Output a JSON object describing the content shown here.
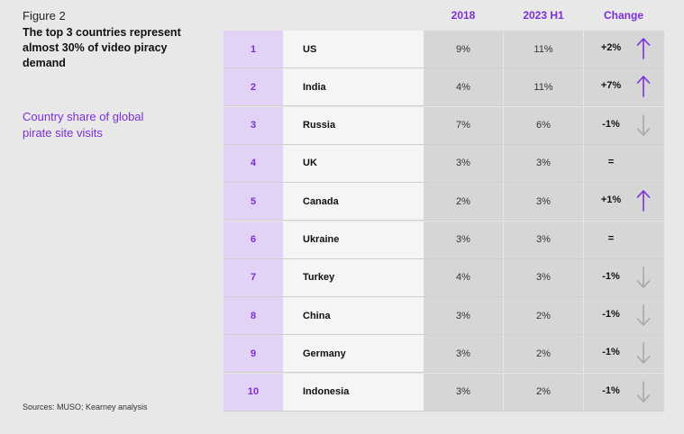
{
  "figure_label": "Figure 2",
  "title": "The top 3 countries represent almost 30% of video piracy demand",
  "subtitle": "Country share of global pirate site visits",
  "sources": "Sources: MUSO; Kearney analysis",
  "colors": {
    "accent": "#7b2fd6",
    "rank_bg": "#e2d2f5",
    "up_arrow": "#7b2fd6",
    "down_arrow": "#a8a8a8"
  },
  "chart_data": {
    "type": "table",
    "columns": [
      "",
      "",
      "2018",
      "2023 H1",
      "Change"
    ],
    "rows": [
      {
        "rank": "1",
        "country": "US",
        "y2018": "9%",
        "y2023": "11%",
        "change": "+2%",
        "direction": "up"
      },
      {
        "rank": "2",
        "country": "India",
        "y2018": "4%",
        "y2023": "11%",
        "change": "+7%",
        "direction": "up"
      },
      {
        "rank": "3",
        "country": "Russia",
        "y2018": "7%",
        "y2023": "6%",
        "change": "-1%",
        "direction": "down"
      },
      {
        "rank": "4",
        "country": "UK",
        "y2018": "3%",
        "y2023": "3%",
        "change": "=",
        "direction": "none"
      },
      {
        "rank": "5",
        "country": "Canada",
        "y2018": "2%",
        "y2023": "3%",
        "change": "+1%",
        "direction": "up"
      },
      {
        "rank": "6",
        "country": "Ukraine",
        "y2018": "3%",
        "y2023": "3%",
        "change": "=",
        "direction": "none"
      },
      {
        "rank": "7",
        "country": "Turkey",
        "y2018": "4%",
        "y2023": "3%",
        "change": "-1%",
        "direction": "down"
      },
      {
        "rank": "8",
        "country": "China",
        "y2018": "3%",
        "y2023": "2%",
        "change": "-1%",
        "direction": "down"
      },
      {
        "rank": "9",
        "country": "Germany",
        "y2018": "3%",
        "y2023": "2%",
        "change": "-1%",
        "direction": "down"
      },
      {
        "rank": "10",
        "country": "Indonesia",
        "y2018": "3%",
        "y2023": "2%",
        "change": "-1%",
        "direction": "down"
      }
    ]
  }
}
